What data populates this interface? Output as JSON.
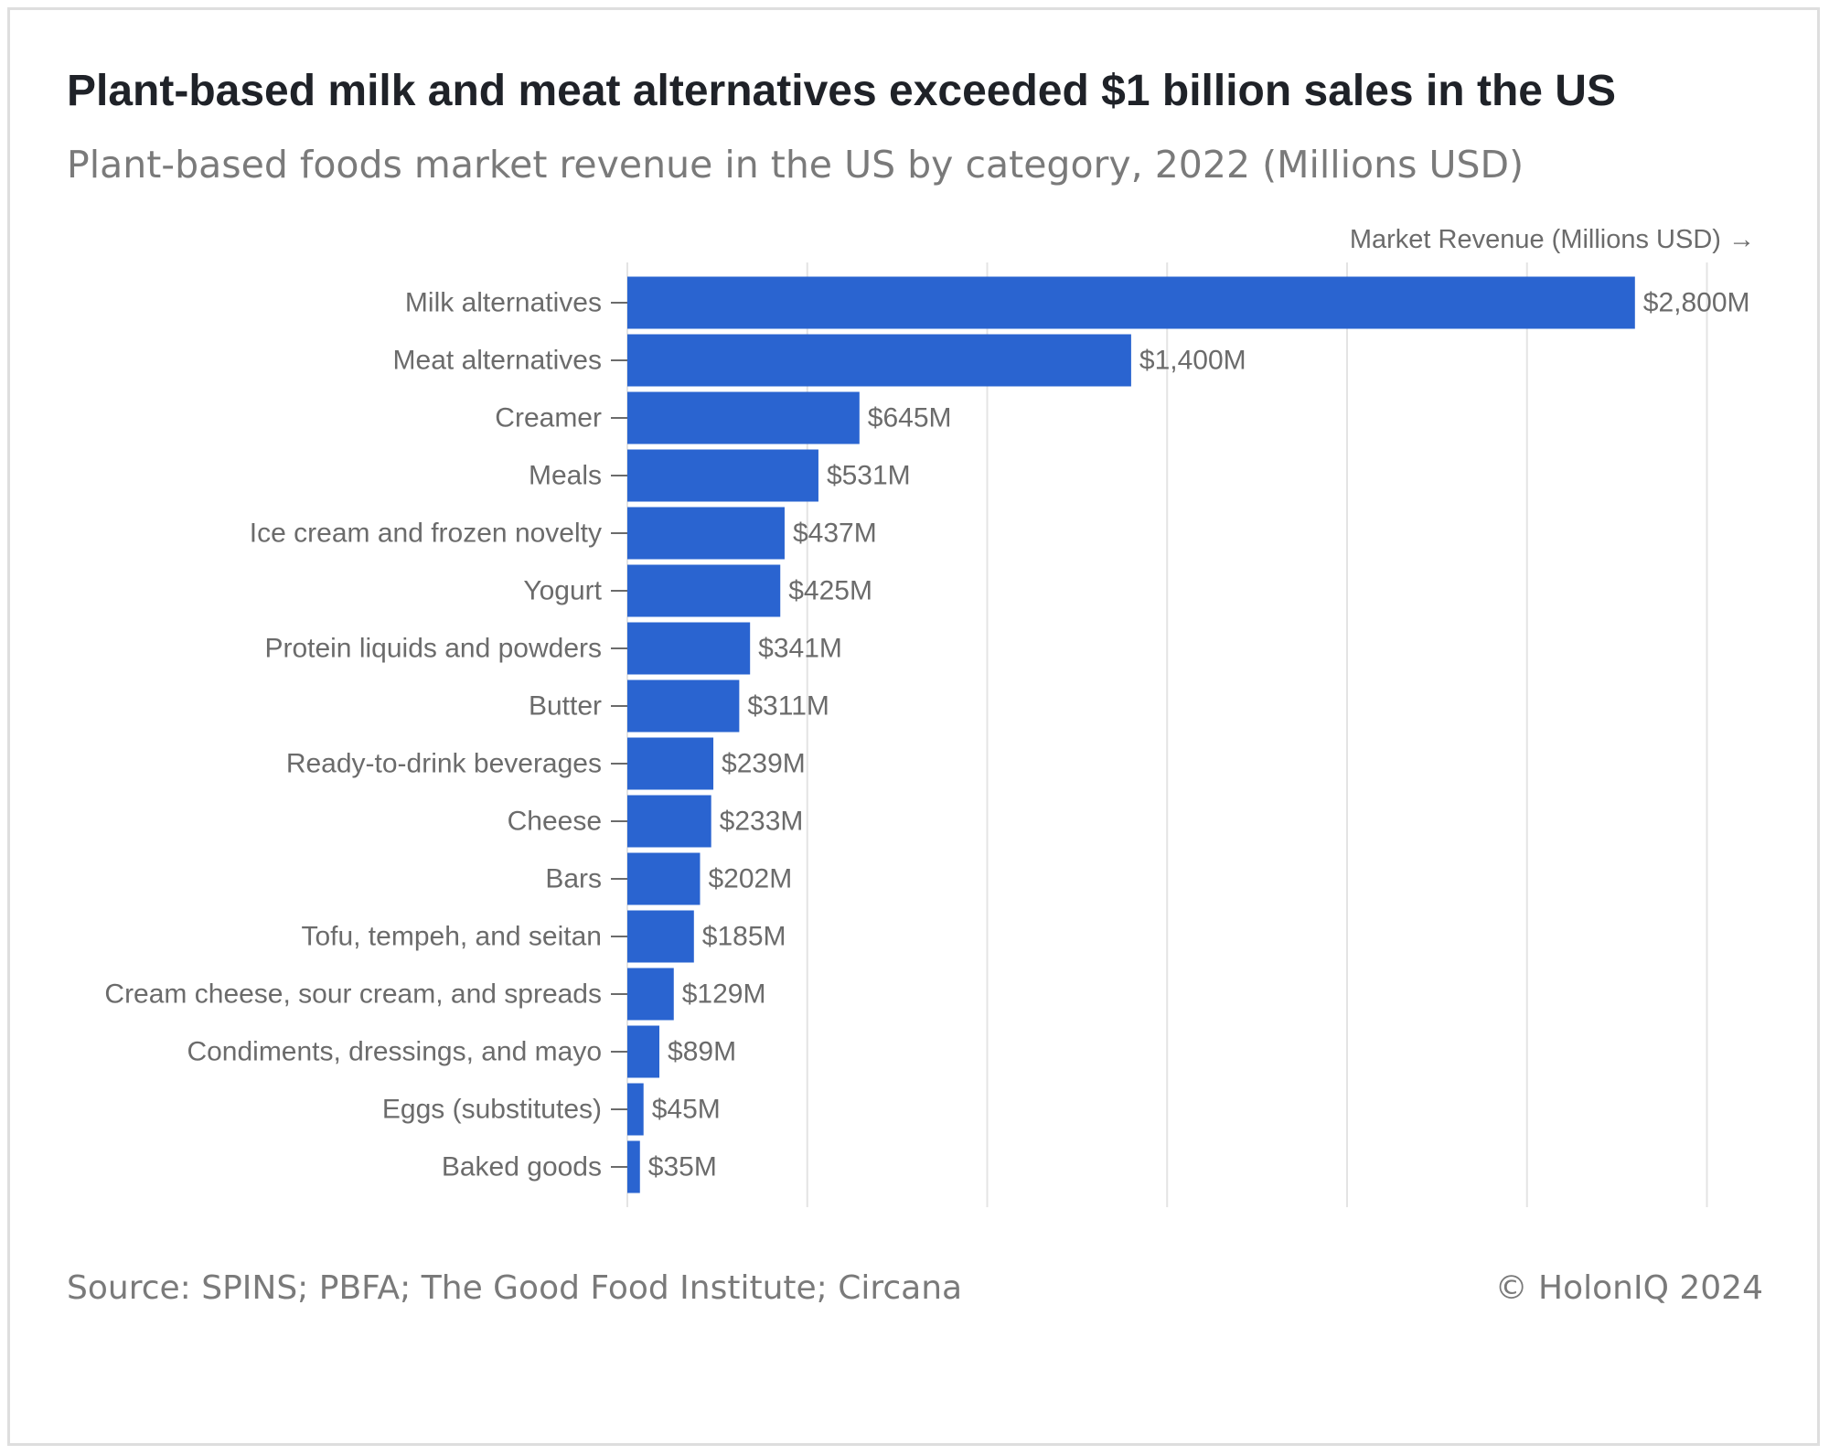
{
  "header": {
    "title": "Plant-based milk and meat alternatives exceeded $1 billion sales in the US",
    "subtitle": "Plant-based foods market revenue in the US by category, 2022 (Millions USD)"
  },
  "footer": {
    "source": "Source: SPINS; PBFA; The Good Food Institute; Circana",
    "copyright": "© HolonIQ 2024"
  },
  "colors": {
    "bar": "#2a64d0",
    "grid": "#e4e4e4",
    "text": "#6b6b6b"
  },
  "chart_data": {
    "type": "bar",
    "orientation": "horizontal",
    "title": "Plant-based milk and meat alternatives exceeded $1 billion sales in the US",
    "subtitle": "Plant-based foods market revenue in the US by category, 2022 (Millions USD)",
    "xlabel": "Market Revenue (Millions USD) →",
    "ylabel": "",
    "xlim": [
      0,
      3000
    ],
    "grid": true,
    "categories": [
      "Milk alternatives",
      "Meat alternatives",
      "Creamer",
      "Meals",
      "Ice cream and frozen novelty",
      "Yogurt",
      "Protein liquids and powders",
      "Butter",
      "Ready-to-drink beverages",
      "Cheese",
      "Bars",
      "Tofu, tempeh, and seitan",
      "Cream cheese, sour cream, and spreads",
      "Condiments, dressings, and mayo",
      "Eggs (substitutes)",
      "Baked goods"
    ],
    "values": [
      2800,
      1400,
      645,
      531,
      437,
      425,
      341,
      311,
      239,
      233,
      202,
      185,
      129,
      89,
      45,
      35
    ],
    "value_labels": [
      "$2,800M",
      "$1,400M",
      "$645M",
      "$531M",
      "$437M",
      "$425M",
      "$341M",
      "$311M",
      "$239M",
      "$233M",
      "$202M",
      "$185M",
      "$129M",
      "$89M",
      "$45M",
      "$35M"
    ]
  }
}
